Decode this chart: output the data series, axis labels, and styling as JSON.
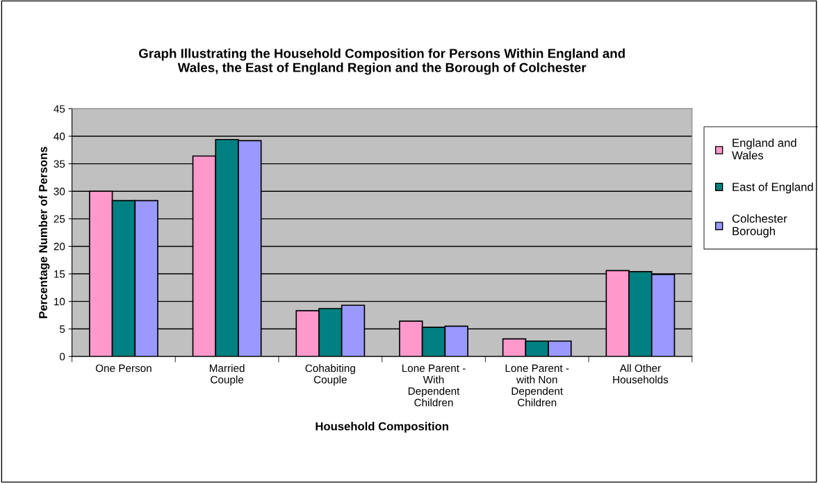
{
  "chart_data": {
    "type": "bar",
    "title": "Graph Illustrating the Household Composition for Persons Within England and\nWales, the East of England Region and the Borough of Colchester",
    "xlabel": "Household Composition",
    "ylabel": "Percentage Number of Persons",
    "categories": [
      "One Person",
      "Married\nCouple",
      "Cohabiting\nCouple",
      "Lone Parent -\nWith\nDependent\nChildren",
      "Lone Parent -\nwith Non\nDependent\nChildren",
      "All Other\nHouseholds"
    ],
    "series": [
      {
        "name": "England and\nWales",
        "color": "#ff99cc",
        "values": [
          30.0,
          36.4,
          8.3,
          6.4,
          3.2,
          15.6
        ]
      },
      {
        "name": "East of England",
        "color": "#008080",
        "values": [
          28.3,
          39.4,
          8.7,
          5.3,
          2.8,
          15.4
        ]
      },
      {
        "name": "Colchester\nBorough",
        "color": "#9999ff",
        "values": [
          28.3,
          39.2,
          9.3,
          5.5,
          2.8,
          14.9
        ]
      }
    ],
    "ylim": [
      0,
      45
    ],
    "yticks": [
      0,
      5,
      10,
      15,
      20,
      25,
      30,
      35,
      40,
      45
    ],
    "grid": "y",
    "legend": "right"
  }
}
